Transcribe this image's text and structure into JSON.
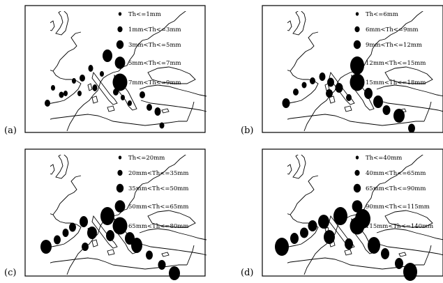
{
  "panels": [
    {
      "letter": "(a)",
      "legend": [
        "Th<=1mm",
        "1mm<Th<=3mm",
        "3mm<Th<=5mm",
        "5mm<Th<=7mm",
        "7mm<Th<=9mm"
      ]
    },
    {
      "letter": "(b)",
      "legend": [
        "Th<=6mm",
        "6mm<Th<=9mm",
        "9mm<Th<=12mm",
        "12mm<Th<=15mm",
        "15mm<Th<=18mm"
      ]
    },
    {
      "letter": "(c)",
      "legend": [
        "Th<=20mm",
        "20mm<Th<=35mm",
        "35mm<Th<=50mm",
        "50mm<Th<=65mm",
        "65mm<Th<=80mm"
      ]
    },
    {
      "letter": "(d)",
      "legend": [
        "Th<=40mm",
        "40mm<Th<=65mm",
        "65mm<Th<=90mm",
        "90mm<Th<=115mm",
        "115mm<Th<=140mm"
      ]
    }
  ],
  "colors": {
    "ink": "#000000",
    "background": "#ffffff"
  }
}
